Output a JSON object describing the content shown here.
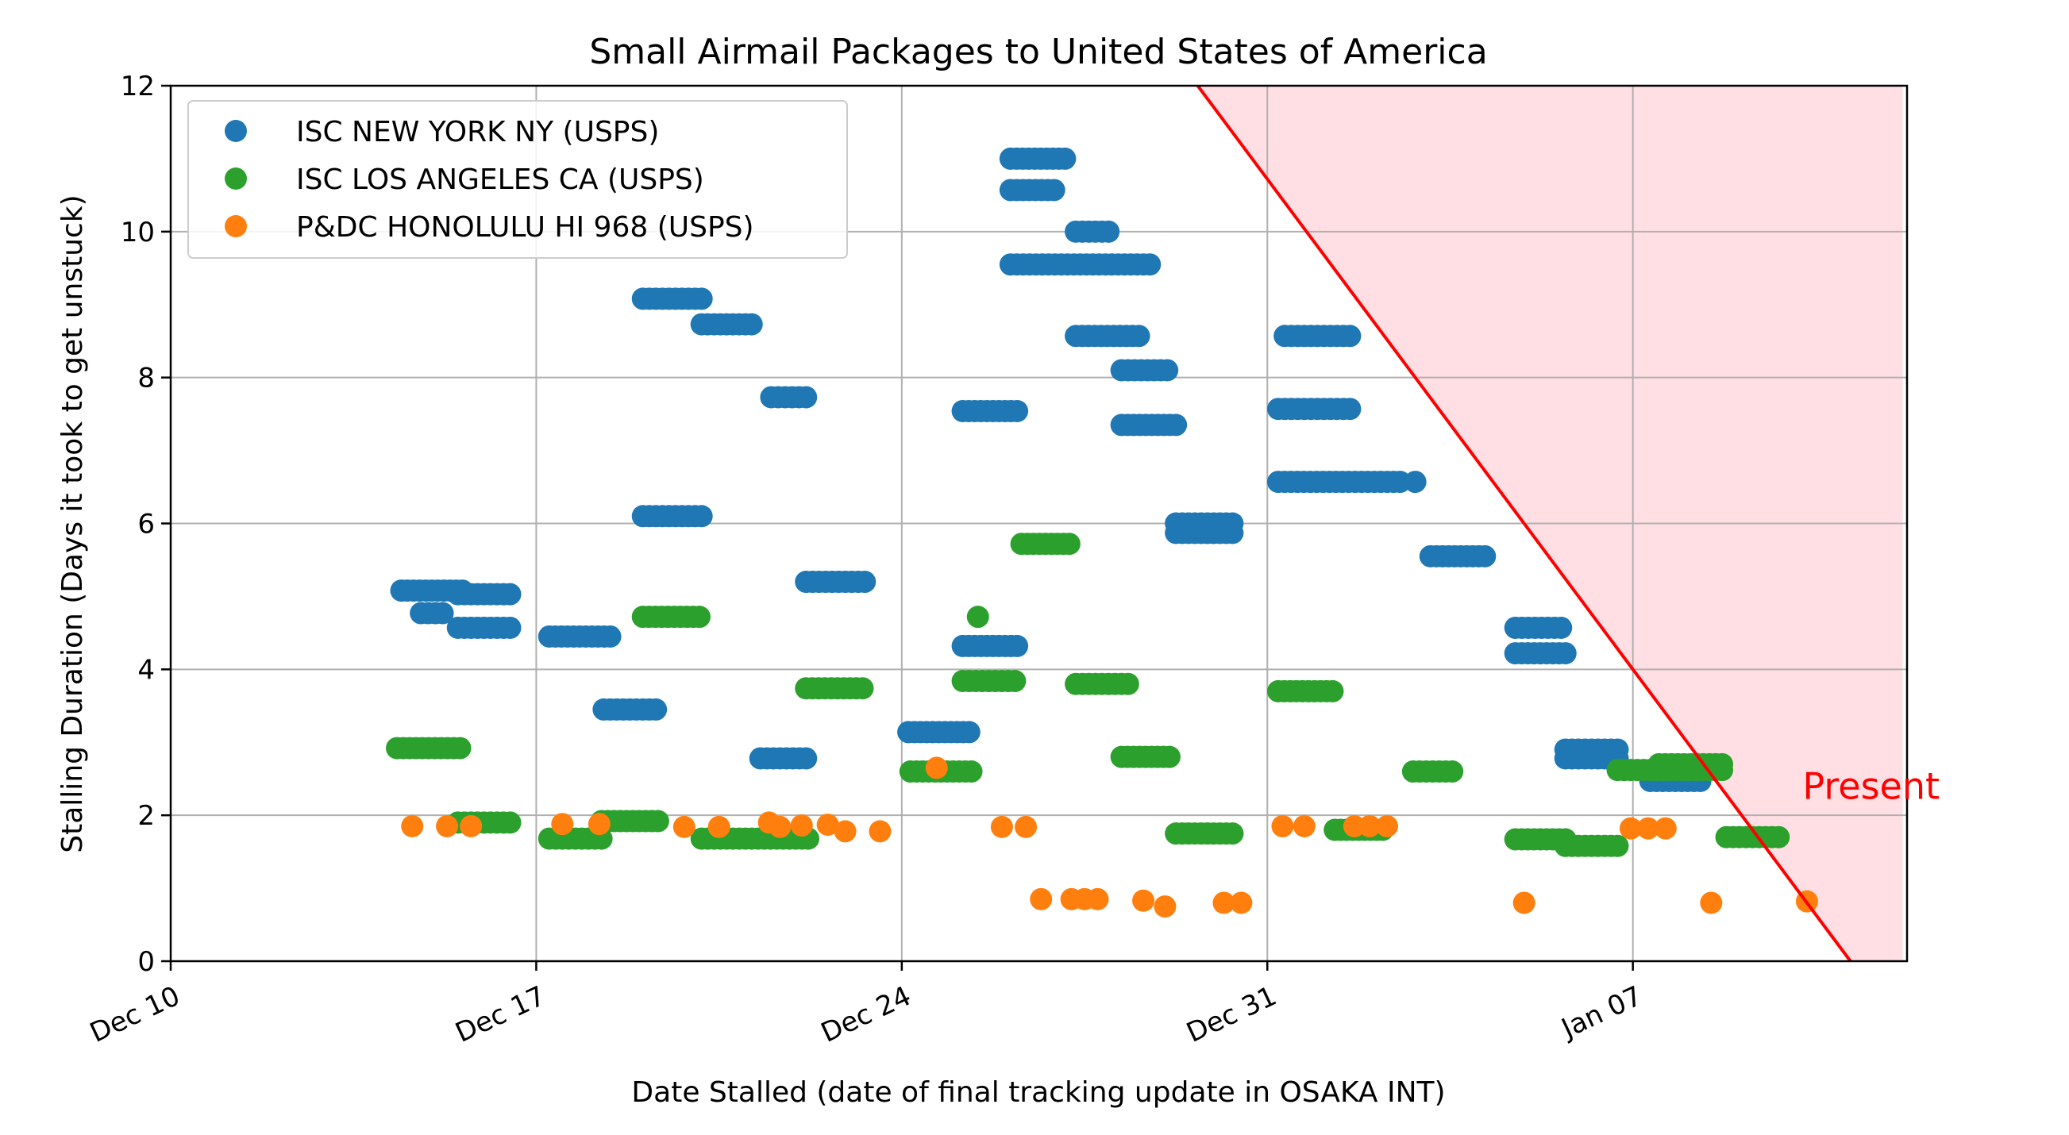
{
  "chart_data": {
    "type": "scatter",
    "title": "Small Airmail Packages to United States of America",
    "xlabel": "Date Stalled (date of final tracking update in OSAKA INT)",
    "ylabel": "Stalling Duration (Days it took to get unstuck)",
    "x_unit": "date",
    "xlim": [
      "2023-12-10",
      "2024-01-12T06:00"
    ],
    "ylim": [
      0,
      12
    ],
    "x_ticks": [
      {
        "date": "2023-12-10",
        "label": "Dec 10"
      },
      {
        "date": "2023-12-17",
        "label": "Dec 17"
      },
      {
        "date": "2023-12-24",
        "label": "Dec 24"
      },
      {
        "date": "2023-12-31",
        "label": "Dec 31"
      },
      {
        "date": "2024-01-07",
        "label": "Jan 07"
      }
    ],
    "y_ticks": [
      0,
      2,
      4,
      6,
      8,
      10,
      12
    ],
    "grid": true,
    "legend_position": "top-left",
    "series": [
      {
        "name": "ISC NEW YORK NY (USPS)",
        "color": "#1f77b4",
        "clusters": [
          {
            "start": "2023-12-14T10:00",
            "end": "2023-12-15T14:00",
            "y": 5.08
          },
          {
            "start": "2023-12-14T19:00",
            "end": "2023-12-15T05:00",
            "y": 4.77
          },
          {
            "start": "2023-12-15T12:00",
            "end": "2023-12-16T12:00",
            "y": 5.03
          },
          {
            "start": "2023-12-15T12:00",
            "end": "2023-12-16T12:00",
            "y": 4.57
          },
          {
            "start": "2023-12-17T06:00",
            "end": "2023-12-18T10:00",
            "y": 4.45
          },
          {
            "start": "2023-12-18T07:00",
            "end": "2023-12-19T07:00",
            "y": 3.45
          },
          {
            "start": "2023-12-19T01:00",
            "end": "2023-12-20T04:00",
            "y": 9.08
          },
          {
            "start": "2023-12-19T01:00",
            "end": "2023-12-20T04:00",
            "y": 6.1
          },
          {
            "start": "2023-12-20T04:00",
            "end": "2023-12-21T03:00",
            "y": 8.73
          },
          {
            "start": "2023-12-21T07:00",
            "end": "2023-12-22T04:00",
            "y": 2.78
          },
          {
            "start": "2023-12-21T12:00",
            "end": "2023-12-22T04:00",
            "y": 7.73
          },
          {
            "start": "2023-12-22T04:00",
            "end": "2023-12-23T07:00",
            "y": 5.2
          },
          {
            "start": "2023-12-24T03:00",
            "end": "2023-12-25T07:00",
            "y": 3.14
          },
          {
            "start": "2023-12-25T04:00",
            "end": "2023-12-26T05:00",
            "y": 7.54
          },
          {
            "start": "2023-12-25T04:00",
            "end": "2023-12-26T05:00",
            "y": 4.32
          },
          {
            "start": "2023-12-26T02:00",
            "end": "2023-12-27T03:00",
            "y": 11.0
          },
          {
            "start": "2023-12-26T02:00",
            "end": "2023-12-26T22:00",
            "y": 10.57
          },
          {
            "start": "2023-12-26T02:00",
            "end": "2023-12-28T18:00",
            "y": 9.55
          },
          {
            "start": "2023-12-27T08:00",
            "end": "2023-12-27T23:00",
            "y": 10.0
          },
          {
            "start": "2023-12-27T08:00",
            "end": "2023-12-28T13:00",
            "y": 8.57
          },
          {
            "start": "2023-12-28T05:00",
            "end": "2023-12-29T02:00",
            "y": 8.1
          },
          {
            "start": "2023-12-28T05:00",
            "end": "2023-12-29T06:00",
            "y": 7.35
          },
          {
            "start": "2023-12-29T06:00",
            "end": "2023-12-30T08:00",
            "y": 6.0
          },
          {
            "start": "2023-12-29T06:00",
            "end": "2023-12-30T08:00",
            "y": 5.87
          },
          {
            "start": "2023-12-31T05:00",
            "end": "2024-01-02T13:00",
            "y": 6.57
          },
          {
            "start": "2023-12-31T05:00",
            "end": "2024-01-01T14:00",
            "y": 7.57
          },
          {
            "start": "2023-12-31T08:00",
            "end": "2024-01-01T14:00",
            "y": 8.57
          },
          {
            "start": "2024-01-02T20:00",
            "end": "2024-01-02T20:00",
            "y": 6.57
          },
          {
            "start": "2024-01-03T03:00",
            "end": "2024-01-04T04:00",
            "y": 5.55
          },
          {
            "start": "2024-01-04T18:00",
            "end": "2024-01-05T15:00",
            "y": 4.57
          },
          {
            "start": "2024-01-04T18:00",
            "end": "2024-01-05T17:00",
            "y": 4.22
          },
          {
            "start": "2024-01-05T17:00",
            "end": "2024-01-06T17:00",
            "y": 2.9
          },
          {
            "start": "2024-01-05T17:00",
            "end": "2024-01-06T17:00",
            "y": 2.78
          },
          {
            "start": "2024-01-07T08:00",
            "end": "2024-01-08T07:00",
            "y": 2.47
          }
        ]
      },
      {
        "name": "ISC LOS ANGELES CA (USPS)",
        "color": "#2ca02c",
        "clusters": [
          {
            "start": "2023-12-14T08:00",
            "end": "2023-12-15T13:00",
            "y": 2.92
          },
          {
            "start": "2023-12-15T12:00",
            "end": "2023-12-16T12:00",
            "y": 1.9
          },
          {
            "start": "2023-12-17T06:00",
            "end": "2023-12-18T06:00",
            "y": 1.68
          },
          {
            "start": "2023-12-18T06:00",
            "end": "2023-12-19T08:00",
            "y": 1.92
          },
          {
            "start": "2023-12-19T01:00",
            "end": "2023-12-20T03:00",
            "y": 4.72
          },
          {
            "start": "2023-12-20T04:00",
            "end": "2023-12-22T05:00",
            "y": 1.68
          },
          {
            "start": "2023-12-22T04:00",
            "end": "2023-12-23T06:00",
            "y": 3.74
          },
          {
            "start": "2023-12-24T04:00",
            "end": "2023-12-25T08:00",
            "y": 2.6
          },
          {
            "start": "2023-12-25T11:00",
            "end": "2023-12-25T11:00",
            "y": 4.72
          },
          {
            "start": "2023-12-25T04:00",
            "end": "2023-12-26T04:00",
            "y": 3.84
          },
          {
            "start": "2023-12-26T07:00",
            "end": "2023-12-27T05:00",
            "y": 5.72
          },
          {
            "start": "2023-12-27T08:00",
            "end": "2023-12-28T08:00",
            "y": 3.8
          },
          {
            "start": "2023-12-28T05:00",
            "end": "2023-12-29T03:00",
            "y": 2.8
          },
          {
            "start": "2023-12-29T06:00",
            "end": "2023-12-30T08:00",
            "y": 1.75
          },
          {
            "start": "2023-12-31T05:00",
            "end": "2024-01-01T06:00",
            "y": 3.7
          },
          {
            "start": "2024-01-01T07:00",
            "end": "2024-01-02T05:00",
            "y": 1.8
          },
          {
            "start": "2024-01-02T19:00",
            "end": "2024-01-03T13:00",
            "y": 2.6
          },
          {
            "start": "2024-01-04T18:00",
            "end": "2024-01-05T17:00",
            "y": 1.67
          },
          {
            "start": "2024-01-05T17:00",
            "end": "2024-01-06T17:00",
            "y": 1.58
          },
          {
            "start": "2024-01-06T17:00",
            "end": "2024-01-08T17:00",
            "y": 2.62
          },
          {
            "start": "2024-01-07T12:00",
            "end": "2024-01-08T17:00",
            "y": 2.7
          },
          {
            "start": "2024-01-08T19:00",
            "end": "2024-01-09T19:00",
            "y": 1.7
          }
        ]
      },
      {
        "name": "P&DC HONOLULU HI 968 (USPS)",
        "color": "#ff7f0e",
        "points": [
          [
            "2023-12-14T15:00",
            1.85
          ],
          [
            "2023-12-15T07:00",
            1.85
          ],
          [
            "2023-12-15T18:00",
            1.85
          ],
          [
            "2023-12-17T12:00",
            1.88
          ],
          [
            "2023-12-18T05:00",
            1.88
          ],
          [
            "2023-12-19T20:00",
            1.84
          ],
          [
            "2023-12-20T12:00",
            1.84
          ],
          [
            "2023-12-21T11:00",
            1.9
          ],
          [
            "2023-12-21T16:00",
            1.84
          ],
          [
            "2023-12-22T02:00",
            1.86
          ],
          [
            "2023-12-22T14:00",
            1.87
          ],
          [
            "2023-12-22T22:00",
            1.78
          ],
          [
            "2023-12-23T14:00",
            1.78
          ],
          [
            "2023-12-24T16:00",
            2.65
          ],
          [
            "2023-12-25T22:00",
            1.84
          ],
          [
            "2023-12-26T09:00",
            1.84
          ],
          [
            "2023-12-26T16:00",
            0.85
          ],
          [
            "2023-12-27T06:00",
            0.85
          ],
          [
            "2023-12-27T12:00",
            0.85
          ],
          [
            "2023-12-27T18:00",
            0.85
          ],
          [
            "2023-12-28T15:00",
            0.83
          ],
          [
            "2023-12-29T01:00",
            0.75
          ],
          [
            "2023-12-30T04:00",
            0.8
          ],
          [
            "2023-12-30T12:00",
            0.8
          ],
          [
            "2023-12-31T07:00",
            1.85
          ],
          [
            "2023-12-31T17:00",
            1.85
          ],
          [
            "2024-01-01T16:00",
            1.85
          ],
          [
            "2024-01-01T23:00",
            1.85
          ],
          [
            "2024-01-02T07:00",
            1.85
          ],
          [
            "2024-01-04T22:00",
            0.8
          ],
          [
            "2024-01-06T23:00",
            1.82
          ],
          [
            "2024-01-07T07:00",
            1.82
          ],
          [
            "2024-01-07T15:00",
            1.82
          ],
          [
            "2024-01-08T12:00",
            0.8
          ],
          [
            "2024-01-10T08:00",
            0.82
          ]
        ]
      }
    ],
    "present_line": {
      "color": "#ff0000",
      "shade_color": "#ffdfe3",
      "start": [
        "2023-12-29T16:00",
        12
      ],
      "end": [
        "2024-01-11T04:00",
        0
      ],
      "shade_x_end": "2024-01-12T04:00"
    },
    "annotations": [
      {
        "text": "Present",
        "x": "2024-01-10T06:00",
        "y": 2.4,
        "color": "#ff0000"
      }
    ]
  }
}
